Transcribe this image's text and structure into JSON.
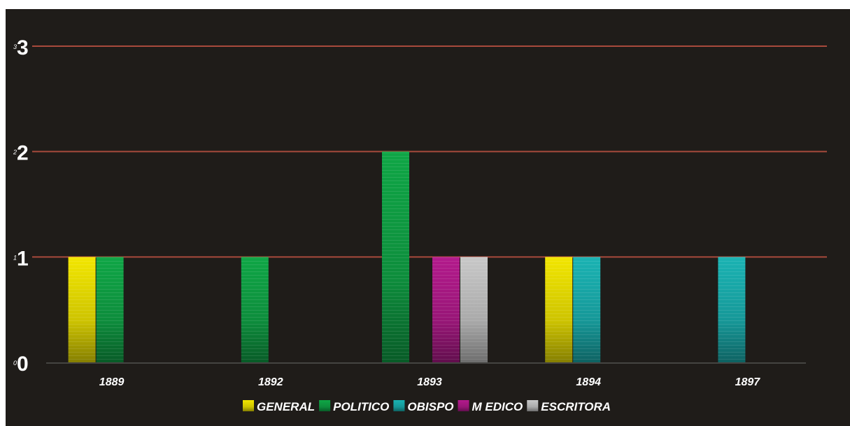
{
  "chart_data": {
    "type": "bar",
    "categories": [
      "1889",
      "1892",
      "1893",
      "1894",
      "1897"
    ],
    "series": [
      {
        "name": "GENERAL",
        "color": "#f2e600",
        "values": [
          1,
          0,
          0,
          1,
          0
        ]
      },
      {
        "name": "POLITICO",
        "color": "#0fa646",
        "values": [
          1,
          1,
          2,
          0,
          0
        ]
      },
      {
        "name": "OBISPO",
        "color": "#1ab3b3",
        "values": [
          0,
          0,
          0,
          1,
          1
        ]
      },
      {
        "name": "M EDICO",
        "color": "#b31a8c",
        "values": [
          0,
          0,
          1,
          0,
          0
        ]
      },
      {
        "name": "ESCRITORA",
        "color": "#c8c8c8",
        "values": [
          0,
          0,
          1,
          0,
          0
        ]
      }
    ],
    "yticks": [
      "0",
      "1",
      "2",
      "3"
    ],
    "ylim": [
      0,
      3
    ],
    "grid": true,
    "grid_color": "#a84a3c",
    "background": "#1f1c19",
    "legend_position": "bottom"
  }
}
